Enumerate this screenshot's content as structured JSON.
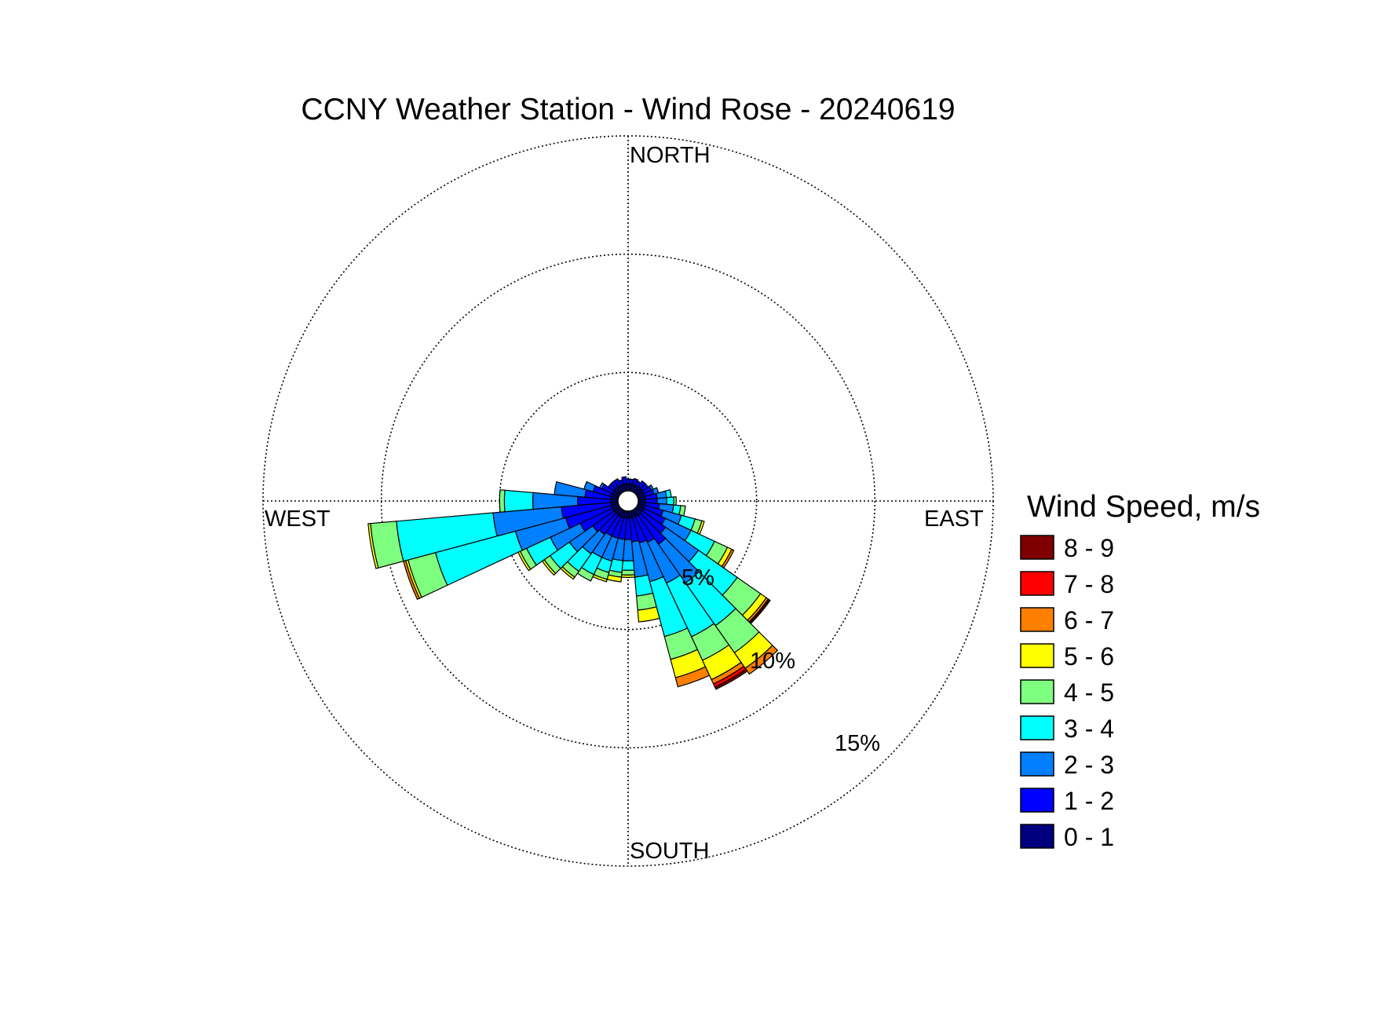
{
  "chart_data": {
    "type": "wind-rose",
    "title": "CCNY Weather Station - Wind Rose - 20240619",
    "direction_labels": {
      "north": "NORTH",
      "east": "EAST",
      "south": "SOUTH",
      "west": "WEST"
    },
    "radial_ticks": [
      {
        "value": 5,
        "label": "5%"
      },
      {
        "value": 10,
        "label": "10%"
      },
      {
        "value": 15,
        "label": "15%"
      }
    ],
    "radial_max": 15,
    "legend_title": "Wind Speed, m/s",
    "speed_bins": [
      {
        "label": "0 - 1",
        "color": "#00007f"
      },
      {
        "label": "1 - 2",
        "color": "#0000ff"
      },
      {
        "label": "2 - 3",
        "color": "#007fff"
      },
      {
        "label": "3 - 4",
        "color": "#00ffff"
      },
      {
        "label": "4 - 5",
        "color": "#7fff7f"
      },
      {
        "label": "5 - 6",
        "color": "#ffff00"
      },
      {
        "label": "6 - 7",
        "color": "#ff7f00"
      },
      {
        "label": "7 - 8",
        "color": "#ff0000"
      },
      {
        "label": "8 - 9",
        "color": "#7f0000"
      }
    ],
    "sector_width_deg": 10,
    "sectors": [
      {
        "direction": 10,
        "values": [
          0.3,
          0.2,
          0,
          0,
          0,
          0,
          0,
          0,
          0
        ]
      },
      {
        "direction": 20,
        "values": [
          0.3,
          0.25,
          0,
          0,
          0,
          0,
          0,
          0,
          0
        ]
      },
      {
        "direction": 30,
        "values": [
          0.3,
          0.2,
          0,
          0,
          0,
          0,
          0,
          0,
          0
        ]
      },
      {
        "direction": 40,
        "values": [
          0.3,
          0.3,
          0,
          0,
          0,
          0,
          0,
          0,
          0
        ]
      },
      {
        "direction": 50,
        "values": [
          0.3,
          0.3,
          0,
          0,
          0,
          0,
          0,
          0,
          0
        ]
      },
      {
        "direction": 60,
        "values": [
          0.3,
          0.35,
          0.1,
          0,
          0,
          0,
          0,
          0,
          0
        ]
      },
      {
        "direction": 70,
        "values": [
          0.3,
          0.4,
          0.2,
          0,
          0,
          0,
          0,
          0,
          0
        ]
      },
      {
        "direction": 80,
        "values": [
          0.3,
          0.5,
          0.4,
          0.2,
          0,
          0,
          0,
          0,
          0
        ]
      },
      {
        "direction": 90,
        "values": [
          0.3,
          0.5,
          0.4,
          0.3,
          0.1,
          0,
          0,
          0,
          0
        ]
      },
      {
        "direction": 100,
        "values": [
          0.3,
          0.6,
          0.6,
          0.3,
          0.2,
          0,
          0,
          0,
          0
        ]
      },
      {
        "direction": 110,
        "values": [
          0.3,
          0.8,
          0.8,
          0.6,
          0.3,
          0.1,
          0,
          0,
          0
        ]
      },
      {
        "direction": 120,
        "values": [
          0.3,
          1.0,
          1.2,
          1.1,
          0.6,
          0.2,
          0.1,
          0,
          0
        ]
      },
      {
        "direction": 130,
        "values": [
          0.3,
          1.2,
          1.7,
          2.0,
          1.2,
          0.3,
          0.1,
          0.05,
          0.05
        ]
      },
      {
        "direction": 140,
        "values": [
          0.3,
          1.5,
          2.0,
          2.2,
          1.4,
          0.8,
          0.3,
          0,
          0
        ]
      },
      {
        "direction": 150,
        "values": [
          0.3,
          1.2,
          1.9,
          2.5,
          1.1,
          0.9,
          0.2,
          0.15,
          0.1
        ]
      },
      {
        "direction": 160,
        "values": [
          0.3,
          1.1,
          1.7,
          2.4,
          1.0,
          0.8,
          0.4,
          0,
          0
        ]
      },
      {
        "direction": 170,
        "values": [
          0.3,
          1.0,
          1.5,
          0.8,
          0.6,
          0.5,
          0,
          0,
          0
        ]
      },
      {
        "direction": 180,
        "values": [
          0.3,
          0.9,
          0.9,
          0.4,
          0.2,
          0.1,
          0,
          0,
          0
        ]
      },
      {
        "direction": 190,
        "values": [
          0.3,
          0.9,
          0.9,
          0.5,
          0.2,
          0.2,
          0,
          0,
          0
        ]
      },
      {
        "direction": 200,
        "values": [
          0.3,
          0.9,
          1.0,
          0.5,
          0.3,
          0.1,
          0,
          0,
          0
        ]
      },
      {
        "direction": 210,
        "values": [
          0.3,
          0.9,
          1.0,
          0.8,
          0.3,
          0,
          0,
          0,
          0
        ]
      },
      {
        "direction": 220,
        "values": [
          0.3,
          1.0,
          1.0,
          0.9,
          0.3,
          0.1,
          0,
          0,
          0
        ]
      },
      {
        "direction": 230,
        "values": [
          0.3,
          1.1,
          1.2,
          1.0,
          0.3,
          0.1,
          0,
          0,
          0
        ]
      },
      {
        "direction": 240,
        "values": [
          0.3,
          1.5,
          1.4,
          1.1,
          0.3,
          0.1,
          0,
          0,
          0
        ]
      },
      {
        "direction": 250,
        "values": [
          0.3,
          2.0,
          2.2,
          3.5,
          1.2,
          0.1,
          0.1,
          0,
          0
        ]
      },
      {
        "direction": 260,
        "values": [
          0.3,
          2.1,
          2.9,
          4.1,
          1.1,
          0.1,
          0,
          0,
          0
        ]
      },
      {
        "direction": 270,
        "values": [
          0.3,
          1.4,
          1.9,
          1.2,
          0.2,
          0,
          0,
          0,
          0
        ]
      },
      {
        "direction": 280,
        "values": [
          0.3,
          1.1,
          1.3,
          0,
          0,
          0,
          0,
          0,
          0
        ]
      },
      {
        "direction": 290,
        "values": [
          0.3,
          0.8,
          0.4,
          0,
          0,
          0,
          0,
          0,
          0
        ]
      },
      {
        "direction": 300,
        "values": [
          0.3,
          0.5,
          0.1,
          0,
          0,
          0,
          0,
          0,
          0
        ]
      },
      {
        "direction": 310,
        "values": [
          0.3,
          0.3,
          0,
          0,
          0,
          0,
          0,
          0,
          0
        ]
      },
      {
        "direction": 320,
        "values": [
          0.3,
          0.3,
          0,
          0,
          0,
          0,
          0,
          0,
          0
        ]
      },
      {
        "direction": 330,
        "values": [
          0.3,
          0.3,
          0,
          0,
          0,
          0,
          0,
          0,
          0
        ]
      },
      {
        "direction": 340,
        "values": [
          0.3,
          0.2,
          0,
          0,
          0,
          0,
          0,
          0,
          0
        ]
      },
      {
        "direction": 350,
        "values": [
          0.3,
          0.3,
          0,
          0,
          0,
          0,
          0,
          0,
          0
        ]
      },
      {
        "direction": 360,
        "values": [
          0.3,
          0.2,
          0,
          0,
          0,
          0,
          0,
          0,
          0
        ]
      }
    ]
  }
}
